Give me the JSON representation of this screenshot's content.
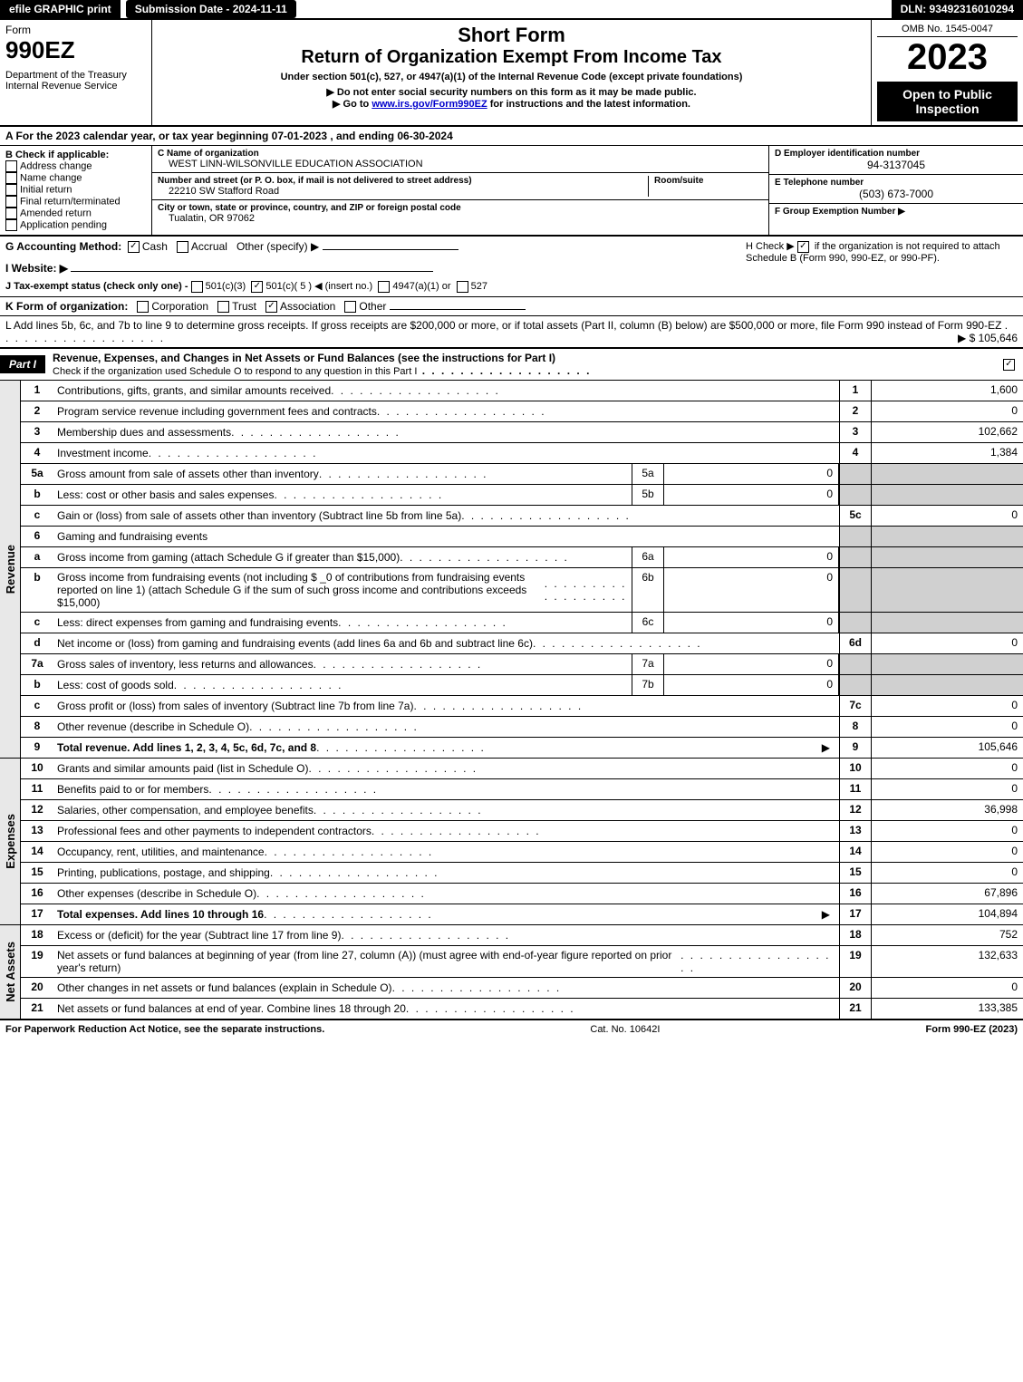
{
  "topbar": {
    "efile": "efile GRAPHIC print",
    "submission": "Submission Date - 2024-11-11",
    "dln": "DLN: 93492316010294"
  },
  "header": {
    "form_word": "Form",
    "form_no": "990EZ",
    "dept": "Department of the Treasury\nInternal Revenue Service",
    "short_form": "Short Form",
    "return_title": "Return of Organization Exempt From Income Tax",
    "subtitle": "Under section 501(c), 527, or 4947(a)(1) of the Internal Revenue Code (except private foundations)",
    "instr1": "▶ Do not enter social security numbers on this form as it may be made public.",
    "instr2_pre": "▶ Go to ",
    "instr2_link": "www.irs.gov/Form990EZ",
    "instr2_post": " for instructions and the latest information.",
    "omb": "OMB No. 1545-0047",
    "year": "2023",
    "badge": "Open to Public Inspection"
  },
  "sectionA": "A  For the 2023 calendar year, or tax year beginning 07-01-2023 , and ending 06-30-2024",
  "colB": {
    "title": "B  Check if applicable:",
    "items": [
      "Address change",
      "Name change",
      "Initial return",
      "Final return/terminated",
      "Amended return",
      "Application pending"
    ]
  },
  "colC": {
    "c_label": "C Name of organization",
    "c_value": "WEST LINN-WILSONVILLE EDUCATION ASSOCIATION",
    "street_label": "Number and street (or P. O. box, if mail is not delivered to street address)",
    "room_label": "Room/suite",
    "street_value": "22210 SW Stafford Road",
    "city_label": "City or town, state or province, country, and ZIP or foreign postal code",
    "city_value": "Tualatin, OR  97062"
  },
  "colDEF": {
    "d_label": "D Employer identification number",
    "d_value": "94-3137045",
    "e_label": "E Telephone number",
    "e_value": "(503) 673-7000",
    "f_label": "F Group Exemption Number  ▶"
  },
  "rowG": {
    "label": "G Accounting Method:",
    "opts": [
      "Cash",
      "Accrual",
      "Other (specify) ▶"
    ],
    "checked": 0
  },
  "rowH": {
    "text_pre": "H  Check ▶ ",
    "text_post": " if the organization is not required to attach Schedule B (Form 990, 990-EZ, or 990-PF).",
    "checked": true
  },
  "rowI": {
    "label": "I Website: ▶"
  },
  "rowJ": {
    "label": "J Tax-exempt status (check only one) - ",
    "opts": [
      "501(c)(3)",
      "501(c)( 5 ) ◀ (insert no.)",
      "4947(a)(1) or",
      "527"
    ],
    "checked": 1
  },
  "rowK": {
    "label": "K Form of organization:",
    "opts": [
      "Corporation",
      "Trust",
      "Association",
      "Other"
    ],
    "checked": 2
  },
  "rowL": {
    "text": "L Add lines 5b, 6c, and 7b to line 9 to determine gross receipts. If gross receipts are $200,000 or more, or if total assets (Part II, column (B) below) are $500,000 or more, file Form 990 instead of Form 990-EZ",
    "amount": "▶ $ 105,646"
  },
  "partI": {
    "badge": "Part I",
    "title": "Revenue, Expenses, and Changes in Net Assets or Fund Balances (see the instructions for Part I)",
    "check_text": "Check if the organization used Schedule O to respond to any question in this Part I",
    "checked": true
  },
  "sections": {
    "revenue": {
      "label": "Revenue"
    },
    "expenses": {
      "label": "Expenses"
    },
    "netassets": {
      "label": "Net Assets"
    }
  },
  "lines": {
    "l1": {
      "no": "1",
      "desc": "Contributions, gifts, grants, and similar amounts received",
      "rno": "1",
      "rval": "1,600"
    },
    "l2": {
      "no": "2",
      "desc": "Program service revenue including government fees and contracts",
      "rno": "2",
      "rval": "0"
    },
    "l3": {
      "no": "3",
      "desc": "Membership dues and assessments",
      "rno": "3",
      "rval": "102,662"
    },
    "l4": {
      "no": "4",
      "desc": "Investment income",
      "rno": "4",
      "rval": "1,384"
    },
    "l5a": {
      "no": "5a",
      "desc": "Gross amount from sale of assets other than inventory",
      "mno": "5a",
      "mval": "0"
    },
    "l5b": {
      "no": "b",
      "desc": "Less: cost or other basis and sales expenses",
      "mno": "5b",
      "mval": "0"
    },
    "l5c": {
      "no": "c",
      "desc": "Gain or (loss) from sale of assets other than inventory (Subtract line 5b from line 5a)",
      "rno": "5c",
      "rval": "0"
    },
    "l6": {
      "no": "6",
      "desc": "Gaming and fundraising events"
    },
    "l6a": {
      "no": "a",
      "desc": "Gross income from gaming (attach Schedule G if greater than $15,000)",
      "mno": "6a",
      "mval": "0"
    },
    "l6b": {
      "no": "b",
      "desc": "Gross income from fundraising events (not including $ _0            of contributions from fundraising events reported on line 1) (attach Schedule G if the sum of such gross income and contributions exceeds $15,000)",
      "mno": "6b",
      "mval": "0"
    },
    "l6c": {
      "no": "c",
      "desc": "Less: direct expenses from gaming and fundraising events",
      "mno": "6c",
      "mval": "0"
    },
    "l6d": {
      "no": "d",
      "desc": "Net income or (loss) from gaming and fundraising events (add lines 6a and 6b and subtract line 6c)",
      "rno": "6d",
      "rval": "0"
    },
    "l7a": {
      "no": "7a",
      "desc": "Gross sales of inventory, less returns and allowances",
      "mno": "7a",
      "mval": "0"
    },
    "l7b": {
      "no": "b",
      "desc": "Less: cost of goods sold",
      "mno": "7b",
      "mval": "0"
    },
    "l7c": {
      "no": "c",
      "desc": "Gross profit or (loss) from sales of inventory (Subtract line 7b from line 7a)",
      "rno": "7c",
      "rval": "0"
    },
    "l8": {
      "no": "8",
      "desc": "Other revenue (describe in Schedule O)",
      "rno": "8",
      "rval": "0"
    },
    "l9": {
      "no": "9",
      "desc": "Total revenue. Add lines 1, 2, 3, 4, 5c, 6d, 7c, and 8",
      "arrow": "▶",
      "rno": "9",
      "rval": "105,646",
      "bold": true
    },
    "l10": {
      "no": "10",
      "desc": "Grants and similar amounts paid (list in Schedule O)",
      "rno": "10",
      "rval": "0"
    },
    "l11": {
      "no": "11",
      "desc": "Benefits paid to or for members",
      "rno": "11",
      "rval": "0"
    },
    "l12": {
      "no": "12",
      "desc": "Salaries, other compensation, and employee benefits",
      "rno": "12",
      "rval": "36,998"
    },
    "l13": {
      "no": "13",
      "desc": "Professional fees and other payments to independent contractors",
      "rno": "13",
      "rval": "0"
    },
    "l14": {
      "no": "14",
      "desc": "Occupancy, rent, utilities, and maintenance",
      "rno": "14",
      "rval": "0"
    },
    "l15": {
      "no": "15",
      "desc": "Printing, publications, postage, and shipping",
      "rno": "15",
      "rval": "0"
    },
    "l16": {
      "no": "16",
      "desc": "Other expenses (describe in Schedule O)",
      "rno": "16",
      "rval": "67,896"
    },
    "l17": {
      "no": "17",
      "desc": "Total expenses. Add lines 10 through 16",
      "arrow": "▶",
      "rno": "17",
      "rval": "104,894",
      "bold": true
    },
    "l18": {
      "no": "18",
      "desc": "Excess or (deficit) for the year (Subtract line 17 from line 9)",
      "rno": "18",
      "rval": "752"
    },
    "l19": {
      "no": "19",
      "desc": "Net assets or fund balances at beginning of year (from line 27, column (A)) (must agree with end-of-year figure reported on prior year's return)",
      "rno": "19",
      "rval": "132,633"
    },
    "l20": {
      "no": "20",
      "desc": "Other changes in net assets or fund balances (explain in Schedule O)",
      "rno": "20",
      "rval": "0"
    },
    "l21": {
      "no": "21",
      "desc": "Net assets or fund balances at end of year. Combine lines 18 through 20",
      "rno": "21",
      "rval": "133,385"
    }
  },
  "footer": {
    "left": "For Paperwork Reduction Act Notice, see the separate instructions.",
    "mid": "Cat. No. 10642I",
    "right": "Form 990-EZ (2023)"
  }
}
